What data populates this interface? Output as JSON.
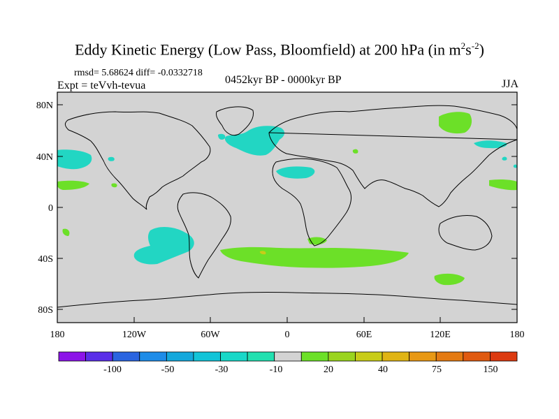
{
  "header": {
    "title_main": "Eddy Kinetic Energy (Low Pass, Bloomfield) at 200 hPa (in m",
    "title_sup1": "2",
    "title_mid": "s",
    "title_sup2": "-2",
    "title_end": ")",
    "stats": "rmsd= 5.68624 diff= -0.0332718",
    "experiment": "Expt = teVvh-tevua",
    "period": "0452kyr BP - 0000kyr BP",
    "season": "JJA"
  },
  "colors": {
    "land_ocean_neutral": "#d3d3d3",
    "negative_small": "#22d6c3",
    "positive_small": "#6ce028",
    "positive_mid": "#c8cc18"
  },
  "chart_data": {
    "type": "map",
    "projection": "cylindrical-equidistant",
    "lat_ticks": [
      "80N",
      "40N",
      "0",
      "40S",
      "80S"
    ],
    "lat_values": [
      80,
      40,
      0,
      -40,
      -80
    ],
    "lon_ticks": [
      "180",
      "120W",
      "60W",
      "0",
      "60E",
      "120E",
      "180"
    ],
    "lon_values": [
      -180,
      -120,
      -60,
      0,
      60,
      120,
      180
    ],
    "xlim": [
      -180,
      180
    ],
    "ylim": [
      -90,
      90
    ],
    "colorbar": {
      "labels": [
        "-100",
        "-50",
        "-30",
        "-10",
        "20",
        "40",
        "75",
        "150"
      ],
      "colors": [
        "#8c14e8",
        "#5a2ee8",
        "#2a64e0",
        "#1e8ce8",
        "#14a8dc",
        "#12c4d8",
        "#18d8c8",
        "#22e0b0",
        "#d3d3d3",
        "#6ce028",
        "#9ad41e",
        "#c8cc18",
        "#e0b414",
        "#e89814",
        "#e47a12",
        "#e05a10",
        "#dc3a10"
      ]
    }
  }
}
